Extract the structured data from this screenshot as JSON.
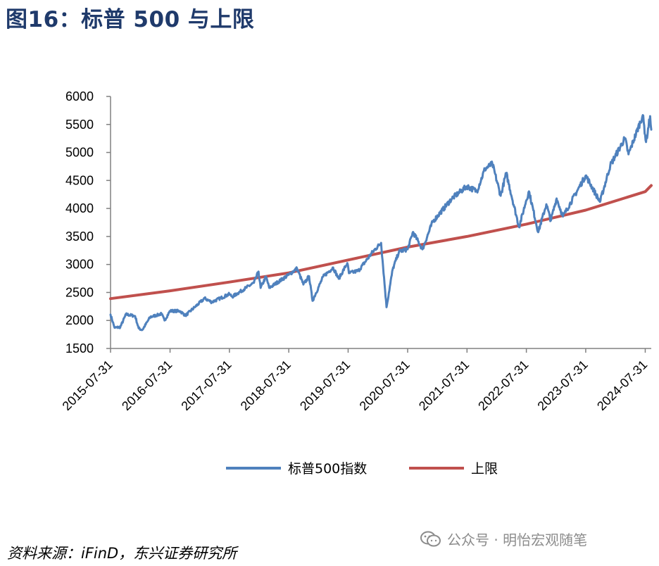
{
  "title": "图16：标普 500 与上限",
  "source": "资料来源：iFinD，东兴证券研究所",
  "watermark": "公众号 · 明怡宏观随笔",
  "colors": {
    "title": "#1F3A6B",
    "sp500": "#4F81BD",
    "upper": "#C0504D"
  },
  "chart_data": {
    "type": "line",
    "title": "",
    "xlabel": "",
    "ylabel": "",
    "x_tick_labels": [
      "2015-07-31",
      "2016-07-31",
      "2017-07-31",
      "2018-07-31",
      "2019-07-31",
      "2020-07-31",
      "2021-07-31",
      "2022-07-31",
      "2023-07-31",
      "2024-07-31"
    ],
    "y_ticks": [
      1500,
      2000,
      2500,
      3000,
      3500,
      4000,
      4500,
      5000,
      5500,
      6000
    ],
    "ylim": [
      1500,
      6000
    ],
    "xlim": [
      "2015-07-31",
      "2024-09-06"
    ],
    "grid": false,
    "legend_position": "bottom",
    "series": [
      {
        "name": "标普500指数",
        "color": "#4F81BD",
        "points": [
          [
            "2015-07-31",
            2104
          ],
          [
            "2015-08-25",
            1870
          ],
          [
            "2015-09-29",
            1882
          ],
          [
            "2015-11-03",
            2110
          ],
          [
            "2015-12-29",
            2078
          ],
          [
            "2016-01-20",
            1860
          ],
          [
            "2016-02-11",
            1829
          ],
          [
            "2016-03-31",
            2060
          ],
          [
            "2016-06-08",
            2119
          ],
          [
            "2016-06-27",
            2000
          ],
          [
            "2016-07-31",
            2170
          ],
          [
            "2016-09-30",
            2168
          ],
          [
            "2016-11-03",
            2088
          ],
          [
            "2016-12-30",
            2239
          ],
          [
            "2017-03-01",
            2395
          ],
          [
            "2017-04-13",
            2328
          ],
          [
            "2017-07-31",
            2470
          ],
          [
            "2017-08-18",
            2425
          ],
          [
            "2017-12-29",
            2673
          ],
          [
            "2018-01-26",
            2872
          ],
          [
            "2018-02-08",
            2581
          ],
          [
            "2018-03-13",
            2783
          ],
          [
            "2018-04-02",
            2582
          ],
          [
            "2018-07-31",
            2816
          ],
          [
            "2018-09-20",
            2930
          ],
          [
            "2018-10-29",
            2641
          ],
          [
            "2018-12-03",
            2790
          ],
          [
            "2018-12-24",
            2351
          ],
          [
            "2019-02-28",
            2784
          ],
          [
            "2019-04-30",
            2945
          ],
          [
            "2019-06-03",
            2744
          ],
          [
            "2019-07-26",
            3025
          ],
          [
            "2019-08-05",
            2844
          ],
          [
            "2019-10-02",
            2887
          ],
          [
            "2019-12-31",
            3230
          ],
          [
            "2020-02-19",
            3386
          ],
          [
            "2020-03-23",
            2237
          ],
          [
            "2020-04-30",
            2912
          ],
          [
            "2020-06-08",
            3232
          ],
          [
            "2020-07-31",
            3271
          ],
          [
            "2020-09-02",
            3580
          ],
          [
            "2020-10-30",
            3270
          ],
          [
            "2020-12-31",
            3756
          ],
          [
            "2021-04-30",
            4181
          ],
          [
            "2021-07-30",
            4395
          ],
          [
            "2021-09-30",
            4308
          ],
          [
            "2021-11-18",
            4705
          ],
          [
            "2022-01-03",
            4797
          ],
          [
            "2022-02-23",
            4226
          ],
          [
            "2022-03-29",
            4631
          ],
          [
            "2022-06-16",
            3667
          ],
          [
            "2022-07-29",
            4130
          ],
          [
            "2022-08-16",
            4305
          ],
          [
            "2022-10-12",
            3577
          ],
          [
            "2022-12-01",
            4076
          ],
          [
            "2022-12-28",
            3783
          ],
          [
            "2023-02-02",
            4179
          ],
          [
            "2023-03-13",
            3855
          ],
          [
            "2023-07-31",
            4589
          ],
          [
            "2023-10-27",
            4117
          ],
          [
            "2023-12-29",
            4770
          ],
          [
            "2024-03-28",
            5254
          ],
          [
            "2024-04-19",
            4967
          ],
          [
            "2024-07-16",
            5667
          ],
          [
            "2024-08-05",
            5186
          ],
          [
            "2024-08-30",
            5648
          ],
          [
            "2024-09-06",
            5408
          ]
        ]
      },
      {
        "name": "上限",
        "color": "#C0504D",
        "points": [
          [
            "2015-07-31",
            2390
          ],
          [
            "2016-07-31",
            2530
          ],
          [
            "2017-07-31",
            2685
          ],
          [
            "2018-07-31",
            2850
          ],
          [
            "2019-07-31",
            3080
          ],
          [
            "2020-07-31",
            3310
          ],
          [
            "2021-07-31",
            3500
          ],
          [
            "2022-07-31",
            3720
          ],
          [
            "2023-07-31",
            3970
          ],
          [
            "2024-07-31",
            4300
          ],
          [
            "2024-09-06",
            4410
          ]
        ]
      }
    ]
  }
}
